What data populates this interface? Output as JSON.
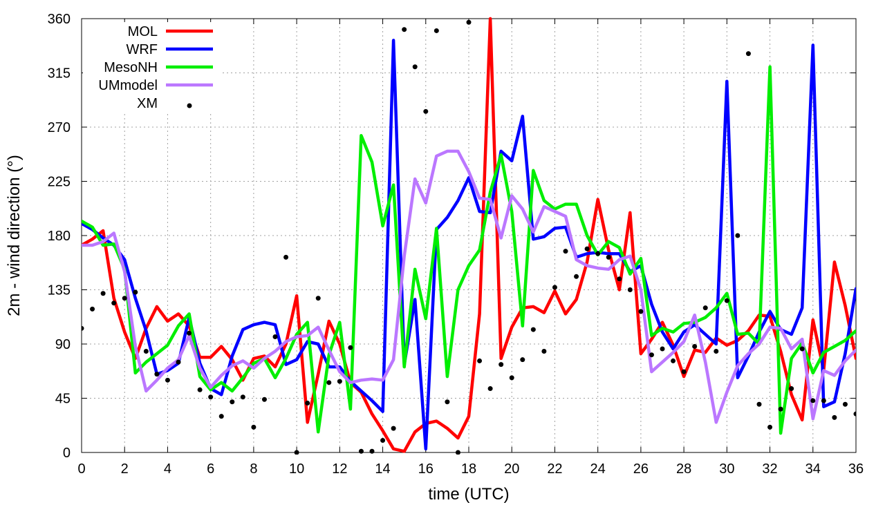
{
  "chart_data": {
    "type": "line",
    "title": "",
    "xlabel": "time (UTC)",
    "ylabel": "2m - wind direction (°)",
    "xlim": [
      0,
      36
    ],
    "ylim": [
      0,
      360
    ],
    "xticks": [
      0,
      2,
      4,
      6,
      8,
      10,
      12,
      14,
      16,
      18,
      20,
      22,
      24,
      26,
      28,
      30,
      32,
      34,
      36
    ],
    "yticks": [
      0,
      45,
      90,
      135,
      180,
      225,
      270,
      315,
      360
    ],
    "xtick_labels": [
      "0",
      "2",
      "4",
      "6",
      "8",
      "10",
      "12",
      "14",
      "16",
      "18",
      "20",
      "22",
      "24",
      "26",
      "28",
      "30",
      "32",
      "34",
      "36"
    ],
    "ytick_labels": [
      "0",
      "45",
      "90",
      "135",
      "180",
      "225",
      "270",
      "315",
      "360"
    ],
    "grid": true,
    "legend_position": "top-left",
    "series": [
      {
        "name": "MOL",
        "color": "#ff0000",
        "kind": "line",
        "x": [
          0,
          0.5,
          1,
          1.5,
          2,
          2.5,
          3,
          3.5,
          4,
          4.5,
          5,
          5.5,
          6,
          6.5,
          7,
          7.5,
          8,
          8.5,
          9,
          9.5,
          10,
          10.5,
          11,
          11.5,
          12,
          12.5,
          13,
          13.5,
          14,
          14.5,
          15,
          15.5,
          16,
          16.5,
          17,
          17.5,
          18,
          18.5,
          19,
          19.5,
          20,
          20.5,
          21,
          21.5,
          22,
          22.5,
          23,
          23.5,
          24,
          24.5,
          25,
          25.5,
          26,
          26.5,
          27,
          27.5,
          28,
          28.5,
          29,
          29.5,
          30,
          30.5,
          31,
          31.5,
          32,
          32.5,
          33,
          33.5,
          34,
          34.5,
          35,
          35.5,
          36
        ],
        "values": [
          172,
          177,
          184,
          128,
          100,
          78,
          103,
          121,
          109,
          115,
          105,
          79,
          79,
          88,
          77,
          60,
          78,
          80,
          71,
          90,
          130,
          25,
          65,
          109,
          90,
          58,
          50,
          32,
          18,
          3,
          1,
          17,
          24,
          26,
          20,
          12,
          30,
          115,
          360,
          78,
          104,
          120,
          121,
          116,
          134,
          115,
          127,
          158,
          210,
          168,
          135,
          199,
          82,
          94,
          108,
          89,
          63,
          85,
          83,
          95,
          89,
          93,
          101,
          114,
          113,
          84,
          48,
          27,
          110,
          68,
          158,
          122,
          78
        ]
      },
      {
        "name": "WRF",
        "color": "#0000ff",
        "kind": "line",
        "x": [
          0,
          0.5,
          1,
          1.5,
          2,
          2.5,
          3,
          3.5,
          4,
          4.5,
          5,
          5.5,
          6,
          6.5,
          7,
          7.5,
          8,
          8.5,
          9,
          9.5,
          10,
          10.5,
          11,
          11.5,
          12,
          12.5,
          13,
          13.5,
          14,
          14.5,
          15,
          15.5,
          16,
          16.5,
          17,
          17.5,
          18,
          18.5,
          19,
          19.5,
          20,
          20.5,
          21,
          21.5,
          22,
          22.5,
          23,
          23.5,
          24,
          24.5,
          25,
          25.5,
          26,
          26.5,
          27,
          27.5,
          28,
          28.5,
          29,
          29.5,
          30,
          30.5,
          31,
          31.5,
          32,
          32.5,
          33,
          33.5,
          34,
          34.5,
          35,
          35.5,
          36
        ],
        "values": [
          190,
          185,
          178,
          172,
          160,
          128,
          101,
          65,
          68,
          74,
          112,
          74,
          53,
          48,
          80,
          102,
          106,
          108,
          106,
          73,
          77,
          92,
          90,
          71,
          71,
          59,
          51,
          43,
          34,
          342,
          73,
          127,
          3,
          185,
          195,
          209,
          228,
          200,
          199,
          250,
          242,
          279,
          177,
          179,
          186,
          187,
          162,
          165,
          166,
          165,
          165,
          150,
          155,
          123,
          100,
          86,
          100,
          106,
          98,
          90,
          308,
          62,
          80,
          100,
          117,
          102,
          98,
          120,
          338,
          38,
          42,
          82,
          136
        ]
      },
      {
        "name": "MesoNH",
        "color": "#00ee00",
        "kind": "line",
        "x": [
          0,
          0.5,
          1,
          1.5,
          2,
          2.5,
          3,
          3.5,
          4,
          4.5,
          5,
          5.5,
          6,
          6.5,
          7,
          7.5,
          8,
          8.5,
          9,
          9.5,
          10,
          10.5,
          11,
          11.5,
          12,
          12.5,
          13,
          13.5,
          14,
          14.5,
          15,
          15.5,
          16,
          16.5,
          17,
          17.5,
          18,
          18.5,
          19,
          19.5,
          20,
          20.5,
          21,
          21.5,
          22,
          22.5,
          23,
          23.5,
          24,
          24.5,
          25,
          25.5,
          26,
          26.5,
          27,
          27.5,
          28,
          28.5,
          29,
          29.5,
          30,
          30.5,
          31,
          31.5,
          32,
          32.5,
          33,
          33.5,
          34,
          34.5,
          35,
          35.5,
          36
        ],
        "values": [
          192,
          187,
          172,
          173,
          152,
          66,
          75,
          82,
          89,
          105,
          115,
          63,
          52,
          58,
          51,
          62,
          74,
          78,
          62,
          78,
          98,
          108,
          17,
          81,
          108,
          36,
          263,
          241,
          188,
          222,
          71,
          152,
          111,
          186,
          63,
          135,
          155,
          168,
          216,
          247,
          200,
          105,
          234,
          209,
          202,
          206,
          206,
          180,
          164,
          175,
          170,
          148,
          161,
          97,
          103,
          100,
          107,
          108,
          112,
          120,
          132,
          98,
          99,
          90,
          320,
          16,
          78,
          91,
          66,
          83,
          88,
          93,
          101
        ]
      },
      {
        "name": "UMmodel",
        "color": "#bb77ff",
        "kind": "line",
        "x": [
          0,
          0.5,
          1,
          1.5,
          2,
          2.5,
          3,
          3.5,
          4,
          4.5,
          5,
          5.5,
          6,
          6.5,
          7,
          7.5,
          8,
          8.5,
          9,
          9.5,
          10,
          10.5,
          11,
          11.5,
          12,
          12.5,
          13,
          13.5,
          14,
          14.5,
          15,
          15.5,
          16,
          16.5,
          17,
          17.5,
          18,
          18.5,
          19,
          19.5,
          20,
          20.5,
          21,
          21.5,
          22,
          22.5,
          23,
          23.5,
          24,
          24.5,
          25,
          25.5,
          26,
          26.5,
          27,
          27.5,
          28,
          28.5,
          29,
          29.5,
          30,
          30.5,
          31,
          31.5,
          32,
          32.5,
          33,
          33.5,
          34,
          34.5,
          35,
          35.5,
          36
        ],
        "values": [
          172,
          172,
          175,
          182,
          150,
          88,
          51,
          60,
          70,
          77,
          97,
          70,
          54,
          64,
          72,
          76,
          70,
          78,
          84,
          92,
          96,
          97,
          104,
          85,
          67,
          58,
          60,
          61,
          60,
          77,
          163,
          227,
          207,
          246,
          250,
          250,
          233,
          211,
          210,
          178,
          213,
          202,
          183,
          204,
          200,
          196,
          160,
          155,
          153,
          152,
          160,
          163,
          135,
          67,
          75,
          83,
          92,
          114,
          75,
          25,
          50,
          72,
          82,
          90,
          104,
          103,
          86,
          94,
          28,
          68,
          64,
          76,
          85
        ]
      },
      {
        "name": "XM",
        "color": "#000000",
        "kind": "scatter",
        "x": [
          0,
          0.5,
          1,
          1.5,
          2,
          2.5,
          3,
          3.5,
          4,
          4.5,
          5,
          5.5,
          6,
          6.5,
          7,
          7.5,
          8,
          8.5,
          9,
          9.5,
          10,
          10.5,
          11,
          11.5,
          12,
          12.5,
          13,
          13.5,
          14,
          14.5,
          15,
          15.5,
          16,
          16.5,
          17,
          17.5,
          18,
          18.5,
          19,
          19.5,
          20,
          20.5,
          21,
          21.5,
          22,
          22.5,
          23,
          23.5,
          24,
          24.5,
          25,
          25.5,
          26,
          26.5,
          27,
          27.5,
          28,
          28.5,
          29,
          29.5,
          30,
          30.5,
          31,
          31.5,
          32,
          32.5,
          33,
          33.5,
          34,
          34.5,
          35,
          35.5,
          36
        ],
        "values": [
          103,
          119,
          132,
          124,
          128,
          133,
          84,
          65,
          60,
          75,
          99,
          52,
          46,
          30,
          42,
          46,
          21,
          44,
          96,
          162,
          0,
          41,
          128,
          58,
          59,
          87,
          1,
          1,
          10,
          20,
          351,
          320,
          283,
          350,
          42,
          0,
          357,
          76,
          53,
          73,
          62,
          77,
          102,
          84,
          137,
          167,
          146,
          169,
          165,
          162,
          144,
          135,
          117,
          81,
          86,
          76,
          67,
          88,
          120,
          84,
          126,
          180,
          331,
          40,
          21,
          36,
          53,
          86,
          43,
          43,
          29,
          40,
          32
        ]
      }
    ]
  }
}
